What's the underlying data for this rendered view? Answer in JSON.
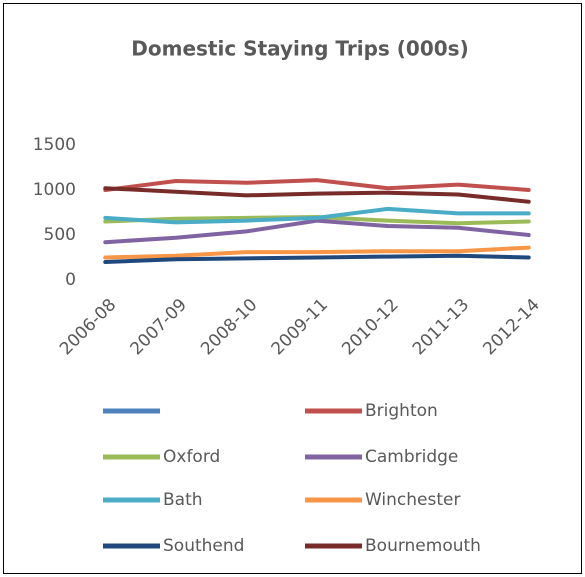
{
  "chart_data": {
    "type": "line",
    "title": "Domestic Staying Trips (000s)",
    "categories": [
      "2006-08",
      "2007-09",
      "2008-10",
      "2009-11",
      "2010-12",
      "2011-13",
      "2012-14"
    ],
    "series": [
      {
        "name": null,
        "color": "#4f81bd",
        "values": [
          null,
          null,
          null,
          null,
          null,
          null,
          null
        ]
      },
      {
        "name": "Brighton",
        "color": "#c0504d",
        "values": [
          1000,
          1100,
          1080,
          1110,
          1020,
          1060,
          1000
        ]
      },
      {
        "name": "Oxford",
        "color": "#9bbb59",
        "values": [
          650,
          680,
          690,
          700,
          660,
          630,
          650
        ]
      },
      {
        "name": "Cambridge",
        "color": "#8064a2",
        "values": [
          420,
          470,
          540,
          660,
          600,
          580,
          500
        ]
      },
      {
        "name": "Bath",
        "color": "#4bacc6",
        "values": [
          690,
          640,
          660,
          690,
          790,
          740,
          740
        ]
      },
      {
        "name": "Winchester",
        "color": "#f79646",
        "values": [
          250,
          270,
          310,
          310,
          320,
          320,
          360
        ]
      },
      {
        "name": "Southend",
        "color": "#1f497d",
        "values": [
          200,
          230,
          240,
          250,
          260,
          270,
          250
        ]
      },
      {
        "name": "Bournemouth",
        "color": "#772c2a",
        "values": [
          1020,
          980,
          940,
          960,
          970,
          950,
          870
        ]
      }
    ],
    "ylim": [
      0,
      1500
    ],
    "yticks": [
      0,
      500,
      1000,
      1500
    ],
    "grid": false,
    "legend": "bottom"
  }
}
